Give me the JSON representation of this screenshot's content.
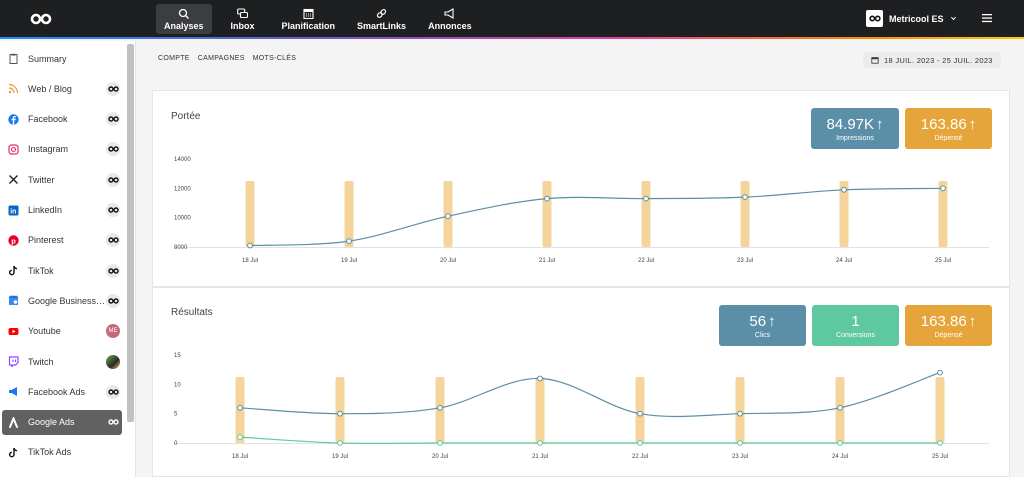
{
  "header": {
    "nav": [
      {
        "label": "Analyses",
        "icon": "analytics-icon",
        "active": true
      },
      {
        "label": "Inbox",
        "icon": "chat-icon",
        "active": false
      },
      {
        "label": "Planification",
        "icon": "calendar-icon",
        "active": false
      },
      {
        "label": "SmartLinks",
        "icon": "link-icon",
        "active": false
      },
      {
        "label": "Annonces",
        "icon": "megaphone-icon",
        "active": false
      }
    ],
    "account": "Metricool ES"
  },
  "sidebar": {
    "items": [
      {
        "label": "Summary",
        "icon": "clipboard-icon",
        "badge": ""
      },
      {
        "label": "Web / Blog",
        "icon": "rss-icon",
        "badge": "logo"
      },
      {
        "label": "Facebook",
        "icon": "facebook-icon",
        "badge": "logo"
      },
      {
        "label": "Instagram",
        "icon": "instagram-icon",
        "badge": "logo"
      },
      {
        "label": "Twitter",
        "icon": "x-icon",
        "badge": "logo"
      },
      {
        "label": "LinkedIn",
        "icon": "linkedin-icon",
        "badge": "logo"
      },
      {
        "label": "Pinterest",
        "icon": "pinterest-icon",
        "badge": "logo"
      },
      {
        "label": "TikTok",
        "icon": "tiktok-icon",
        "badge": "logo"
      },
      {
        "label": "Google Business Profile",
        "icon": "google-business-icon",
        "badge": "logo"
      },
      {
        "label": "Youtube",
        "icon": "youtube-icon",
        "badge": "ME"
      },
      {
        "label": "Twitch",
        "icon": "twitch-icon",
        "badge": "avatar"
      },
      {
        "label": "Facebook Ads",
        "icon": "facebook-ads-icon",
        "badge": "logo"
      },
      {
        "label": "Google Ads",
        "icon": "google-ads-icon",
        "badge": "logo",
        "active": true
      },
      {
        "label": "TikTok Ads",
        "icon": "tiktok-icon",
        "badge": ""
      }
    ]
  },
  "subnav": {
    "tabs": [
      "COMPTE",
      "CAMPAGNES",
      "MOTS-CLÉS"
    ]
  },
  "daterange": "18 JUIL. 2023 - 25 JUIL. 2023",
  "reach": {
    "title": "Portée",
    "kpis": [
      {
        "value": "84.97K",
        "label": "Impressions",
        "color": "#5b8fa8"
      },
      {
        "value": "163.86",
        "label": "Dépensé",
        "color": "#e6a53a"
      }
    ]
  },
  "results": {
    "title": "Résultats",
    "kpis": [
      {
        "value": "56",
        "label": "Clics",
        "color": "#5b8fa8"
      },
      {
        "value": "1",
        "label": "Conversions",
        "color": "#5ec9a0"
      },
      {
        "value": "163.86",
        "label": "Dépensé",
        "color": "#e6a53a"
      }
    ]
  },
  "chart_data": [
    {
      "type": "line",
      "categories": [
        "18 Jul",
        "19 Jul",
        "20 Jul",
        "21 Jul",
        "22 Jul",
        "23 Jul",
        "24 Jul",
        "25 Jul"
      ],
      "yticks": [
        8000,
        10000,
        12000,
        14000
      ],
      "ylim": [
        8000,
        14000
      ],
      "bars_color": "#f5d49c",
      "series": [
        {
          "values": [
            8100,
            8400,
            10100,
            11300,
            11300,
            11400,
            11900,
            12000
          ],
          "color": "#5b8fa8"
        }
      ]
    },
    {
      "type": "line",
      "categories": [
        "18 Jul",
        "19 Jul",
        "20 Jul",
        "21 Jul",
        "22 Jul",
        "23 Jul",
        "24 Jul",
        "25 Jul"
      ],
      "yticks": [
        0,
        5,
        10,
        15
      ],
      "ylim": [
        0,
        15
      ],
      "bars_color": "#f5d49c",
      "series": [
        {
          "values": [
            6,
            5,
            6,
            11,
            5,
            5,
            6,
            12
          ],
          "color": "#5b8fa8"
        },
        {
          "values": [
            1,
            0,
            0,
            0,
            0,
            0,
            0,
            0
          ],
          "color": "#5ec9a0"
        }
      ]
    }
  ]
}
